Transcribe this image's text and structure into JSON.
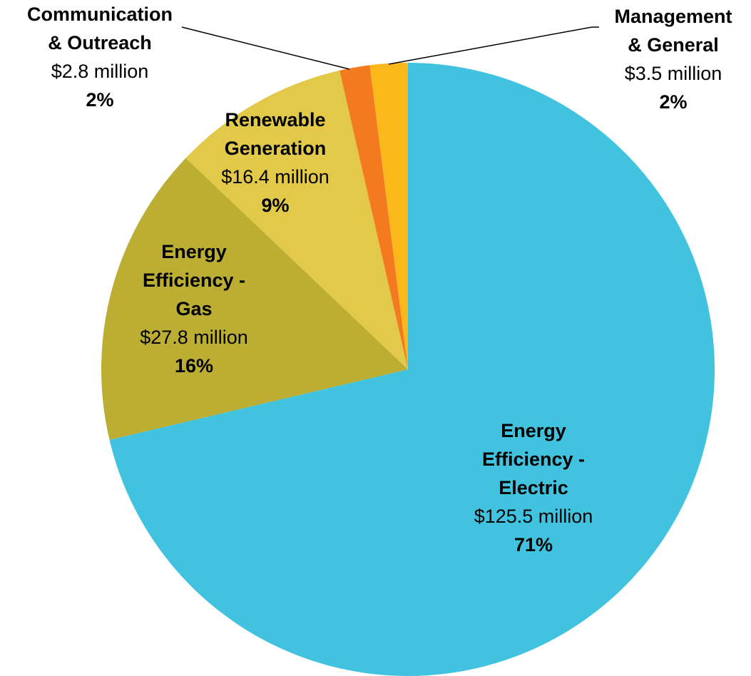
{
  "chart_data": {
    "type": "pie",
    "categories": [
      [
        "Energy",
        "Efficiency -",
        "Electric"
      ],
      [
        "Energy",
        "Efficiency -",
        "Gas"
      ],
      [
        "Renewable",
        "Generation"
      ],
      [
        "Communication",
        "& Outreach"
      ],
      [
        "Management",
        "& General"
      ]
    ],
    "values": [
      125.5,
      27.8,
      16.4,
      2.8,
      3.5
    ],
    "value_labels": [
      "$125.5 million",
      "$27.8 million",
      "$16.4 million",
      "$2.8 million",
      "$3.5 million"
    ],
    "percent_labels": [
      "71%",
      "16%",
      "9%",
      "2%",
      "2%"
    ],
    "colors": [
      "#41c3df",
      "#bbae33",
      "#e2c94a",
      "#f47a20",
      "#fbb81b"
    ]
  }
}
